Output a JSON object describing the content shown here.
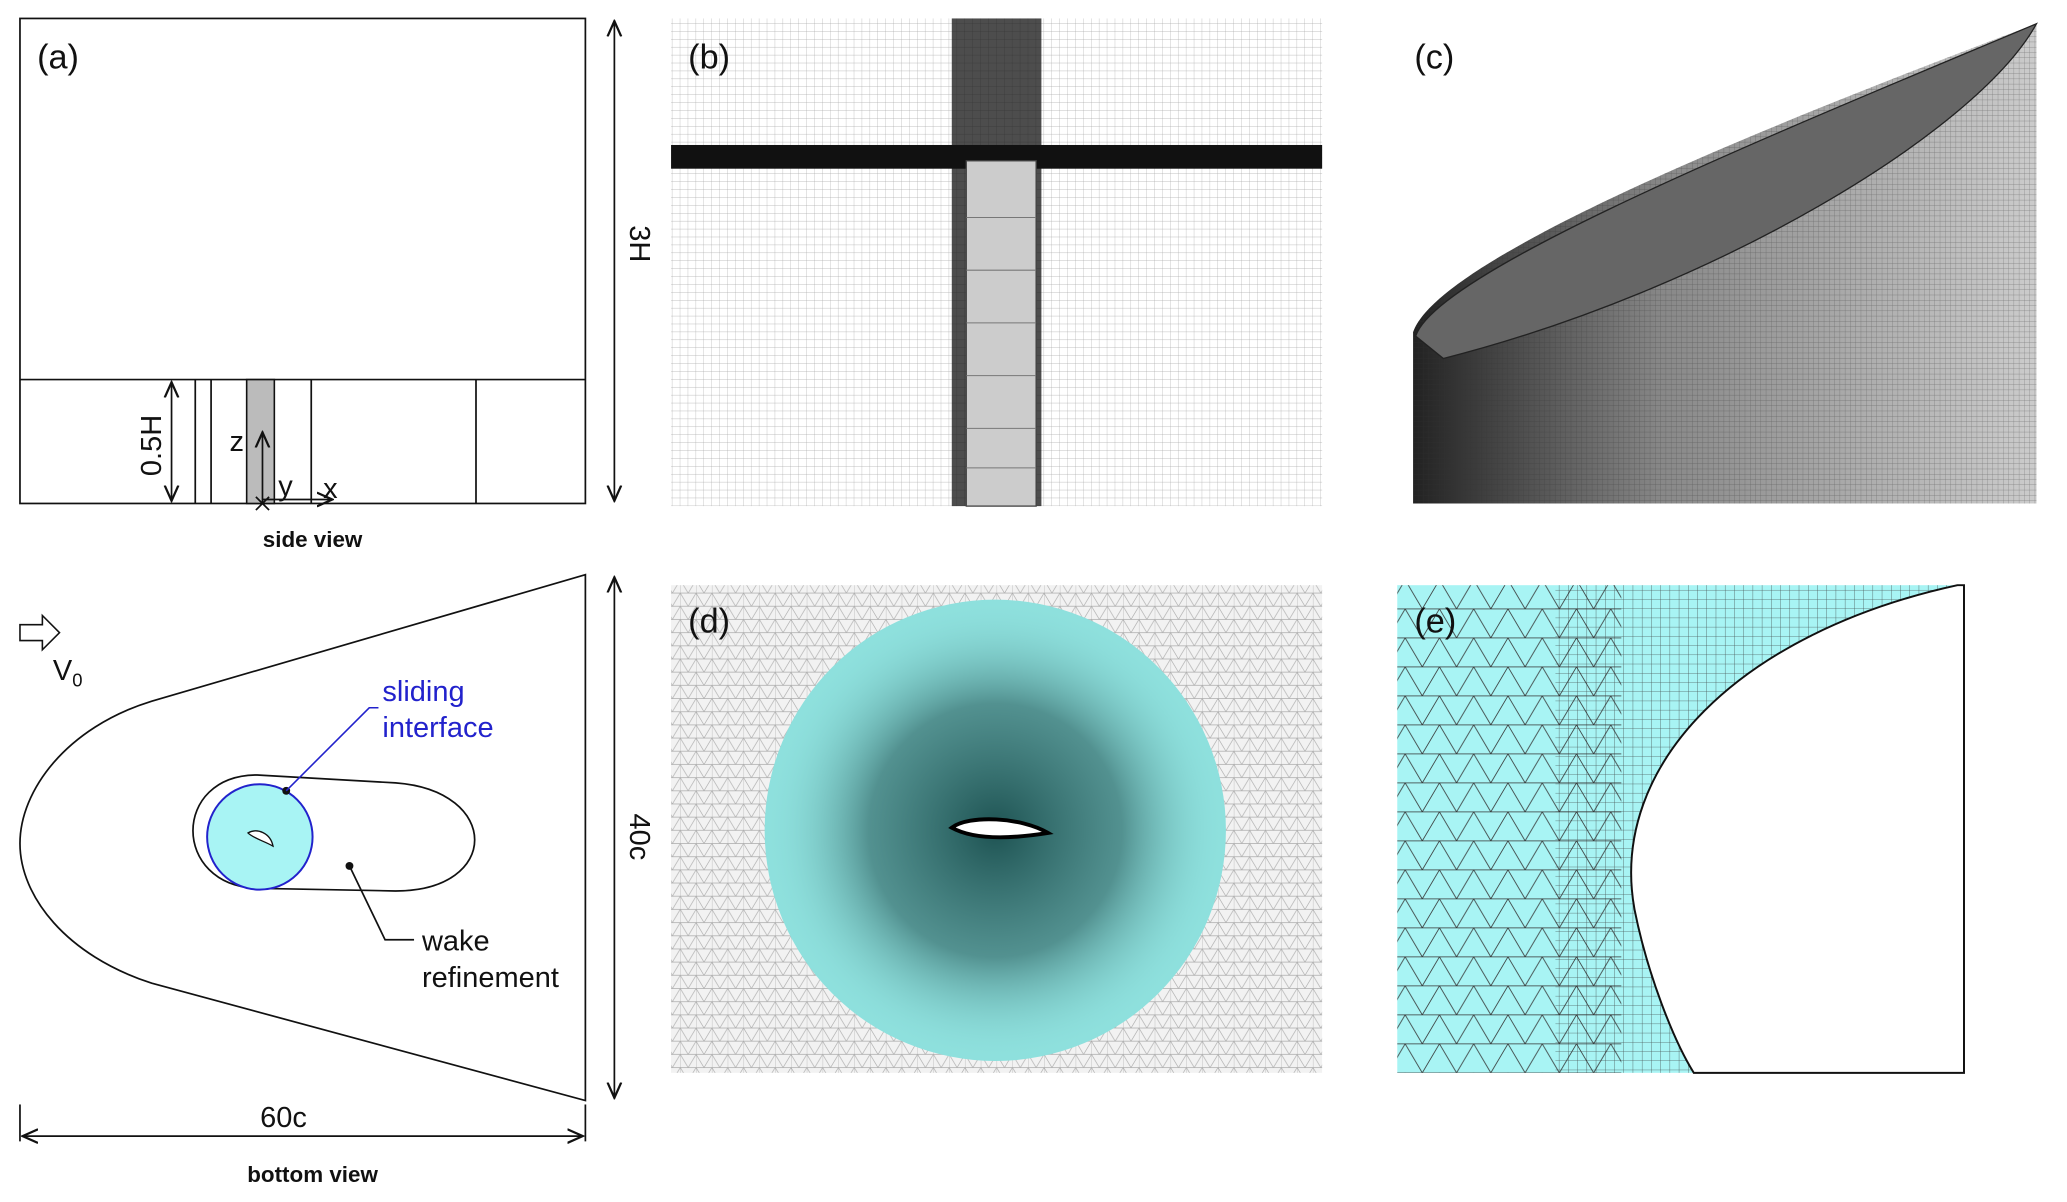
{
  "panels": {
    "a": {
      "label": "(a)",
      "dim_height": "3H",
      "dim_lower": "0.5H",
      "axis_z": "z",
      "axis_y": "y",
      "axis_x": "x",
      "caption": "side view"
    },
    "b": {
      "label": "(b)"
    },
    "c": {
      "label": "(c)"
    },
    "d": {
      "label": "(d)"
    },
    "e": {
      "label": "(e)"
    },
    "bottom": {
      "inflow": "V",
      "inflow_sub": "0",
      "sliding": [
        "sliding",
        "interface"
      ],
      "wake": [
        "wake",
        "refinement"
      ],
      "dim_width": "40c",
      "dim_length": "60c",
      "caption": "bottom view"
    }
  }
}
